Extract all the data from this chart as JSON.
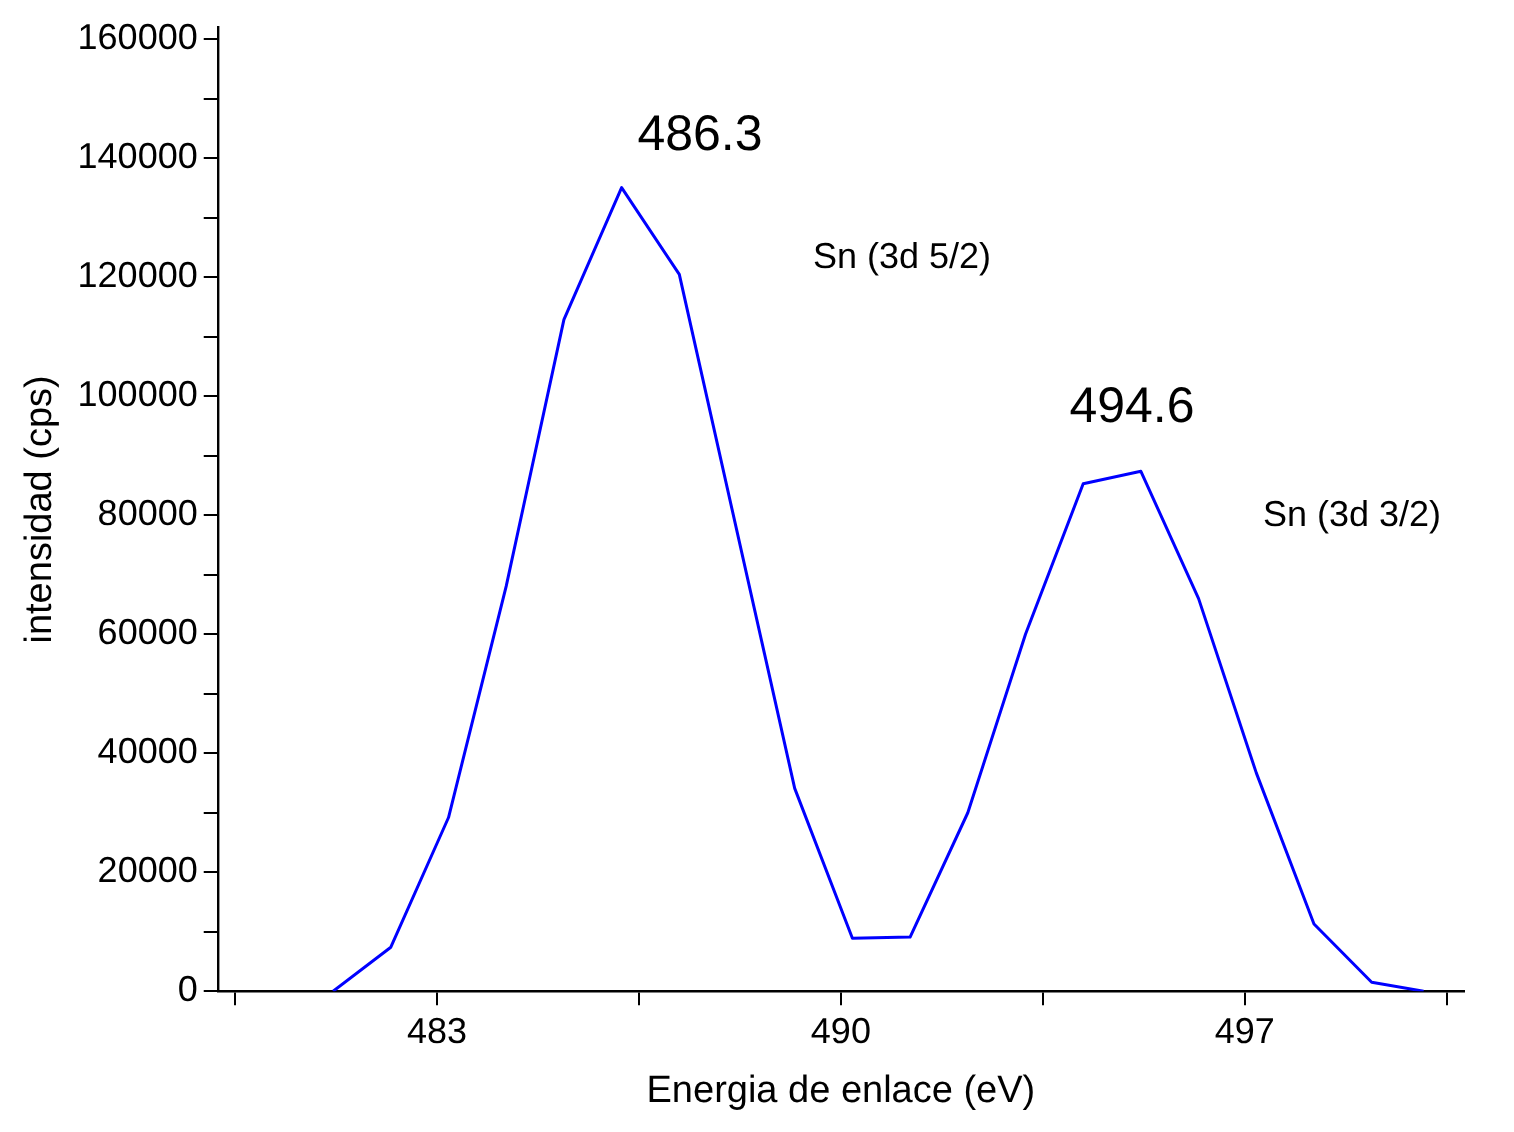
{
  "chart_data": {
    "type": "line",
    "xlabel": "Energia de enlace (eV)",
    "ylabel": "intensidad (cps)",
    "x": [
      481.2,
      482.2,
      483.2,
      484.2,
      485.2,
      486.2,
      487.2,
      489.2,
      490.2,
      491.2,
      492.2,
      493.2,
      494.2,
      495.2,
      496.2,
      497.2,
      498.2,
      499.2,
      500.1
    ],
    "series": [
      {
        "color": "#0000ff",
        "values": [
          0,
          7400,
          29200,
          68100,
          112900,
          135100,
          120500,
          34100,
          8900,
          9100,
          30000,
          60000,
          85300,
          87400,
          66000,
          36700,
          11300,
          1500,
          0
        ]
      }
    ],
    "xlim": [
      479.2,
      500.8
    ],
    "xticks": [
      {
        "value": 479.5,
        "label": null
      },
      483,
      {
        "value": 486.5,
        "label": null
      },
      490,
      {
        "value": 493.5,
        "label": null
      },
      497,
      {
        "value": 500.5,
        "label": null
      }
    ],
    "ylim": [
      0,
      162000
    ],
    "yticks": [
      0,
      {
        "value": 10000,
        "label": null
      },
      20000,
      {
        "value": 30000,
        "label": null
      },
      40000,
      {
        "value": 50000,
        "label": null
      },
      60000,
      {
        "value": 70000,
        "label": null
      },
      80000,
      {
        "value": 90000,
        "label": null
      },
      100000,
      {
        "value": 110000,
        "label": null
      },
      120000,
      {
        "value": 130000,
        "label": null
      },
      140000,
      {
        "value": 150000,
        "label": null
      },
      160000
    ],
    "grid": false,
    "legend": false,
    "marker": "none",
    "line_style": "solid",
    "annotations": [
      "486.3",
      "Sn (3d 5/2)",
      "494.6",
      "Sn (3d 3/2)"
    ]
  }
}
